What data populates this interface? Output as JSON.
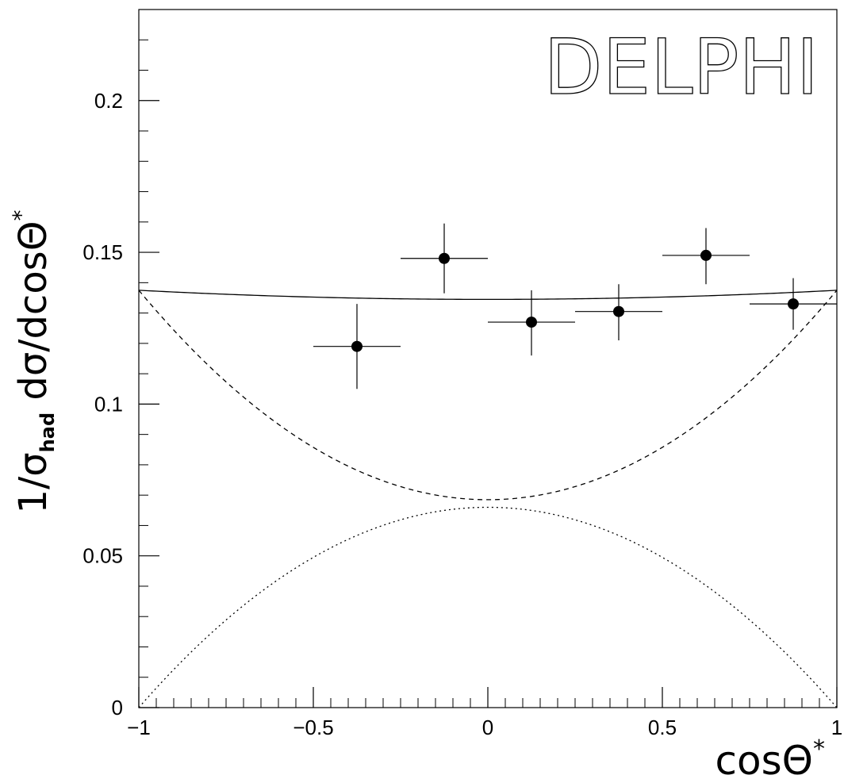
{
  "chart_data": {
    "type": "scatter",
    "xlim": [
      -1,
      1
    ],
    "ylim": [
      0,
      0.23
    ],
    "x_ticks": [
      {
        "value": -1,
        "label": "−1"
      },
      {
        "value": -0.5,
        "label": "−0.5"
      },
      {
        "value": 0,
        "label": "0"
      },
      {
        "value": 0.5,
        "label": "0.5"
      },
      {
        "value": 1,
        "label": "1"
      }
    ],
    "y_ticks": [
      {
        "value": 0,
        "label": "0"
      },
      {
        "value": 0.05,
        "label": "0.05"
      },
      {
        "value": 0.1,
        "label": "0.1"
      },
      {
        "value": 0.15,
        "label": "0.15"
      },
      {
        "value": 0.2,
        "label": "0.2"
      }
    ],
    "xlabel": {
      "main": "cosΘ",
      "sup": "*"
    },
    "ylabel": {
      "pre": "1/σ",
      "sub": "had",
      "post": "  dσ/dcosΘ",
      "sup": "*"
    },
    "logo": "DELPHI",
    "grid": false,
    "points": [
      {
        "x": -0.375,
        "y": 0.119,
        "xerr": 0.125,
        "y_low": 0.105,
        "y_high": 0.133
      },
      {
        "x": -0.125,
        "y": 0.148,
        "xerr": 0.125,
        "y_low": 0.1365,
        "y_high": 0.1595
      },
      {
        "x": 0.125,
        "y": 0.127,
        "xerr": 0.125,
        "y_low": 0.116,
        "y_high": 0.1375
      },
      {
        "x": 0.375,
        "y": 0.1305,
        "xerr": 0.125,
        "y_low": 0.121,
        "y_high": 0.1395
      },
      {
        "x": 0.625,
        "y": 0.149,
        "xerr": 0.125,
        "y_low": 0.1395,
        "y_high": 0.158
      },
      {
        "x": 0.875,
        "y": 0.133,
        "xerr": 0.125,
        "y_low": 0.1245,
        "y_high": 0.1415
      }
    ],
    "curves": [
      {
        "style": "solid",
        "a": 0.1345,
        "b": 0.003
      },
      {
        "style": "dashed",
        "a": 0.0685,
        "b": 0.069
      },
      {
        "style": "dotted",
        "a": 0.066,
        "b": -0.066
      }
    ]
  }
}
